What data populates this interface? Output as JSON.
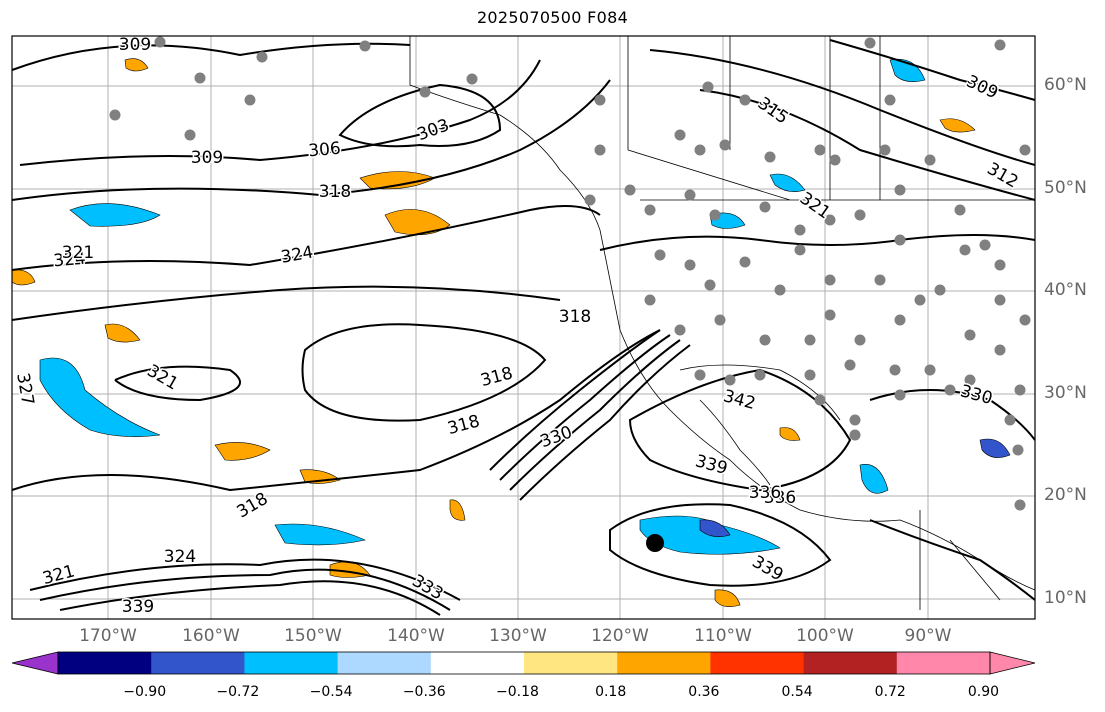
{
  "title": "2025070500 F084",
  "map": {
    "lon_labels": [
      "170°W",
      "160°W",
      "150°W",
      "140°W",
      "130°W",
      "120°W",
      "110°W",
      "100°W",
      "90°W"
    ],
    "lat_labels": [
      "60°N",
      "50°N",
      "40°N",
      "30°N",
      "20°N",
      "10°N"
    ],
    "contour_labels": [
      "309",
      "303",
      "306",
      "309",
      "315",
      "312",
      "318",
      "321",
      "324",
      "324",
      "321",
      "321",
      "318",
      "318",
      "318",
      "330",
      "342",
      "330",
      "339",
      "336",
      "339",
      "318",
      "324",
      "321",
      "339",
      "336",
      "333",
      "327",
      "309"
    ],
    "land_color": "#ffffff",
    "grid_color": "#b0b0b0",
    "station_color": "#808080"
  },
  "colorbar": {
    "ticks": [
      "−0.90",
      "−0.72",
      "−0.54",
      "−0.36",
      "−0.18",
      "0.18",
      "0.36",
      "0.54",
      "0.72",
      "0.90"
    ],
    "colors": [
      "#9933cc",
      "#000080",
      "#3355cc",
      "#00bfff",
      "#add8ff",
      "#ffffff",
      "#ffe680",
      "#ffa500",
      "#ff3300",
      "#b22222",
      "#ff88aa",
      "#ff88aa"
    ]
  }
}
